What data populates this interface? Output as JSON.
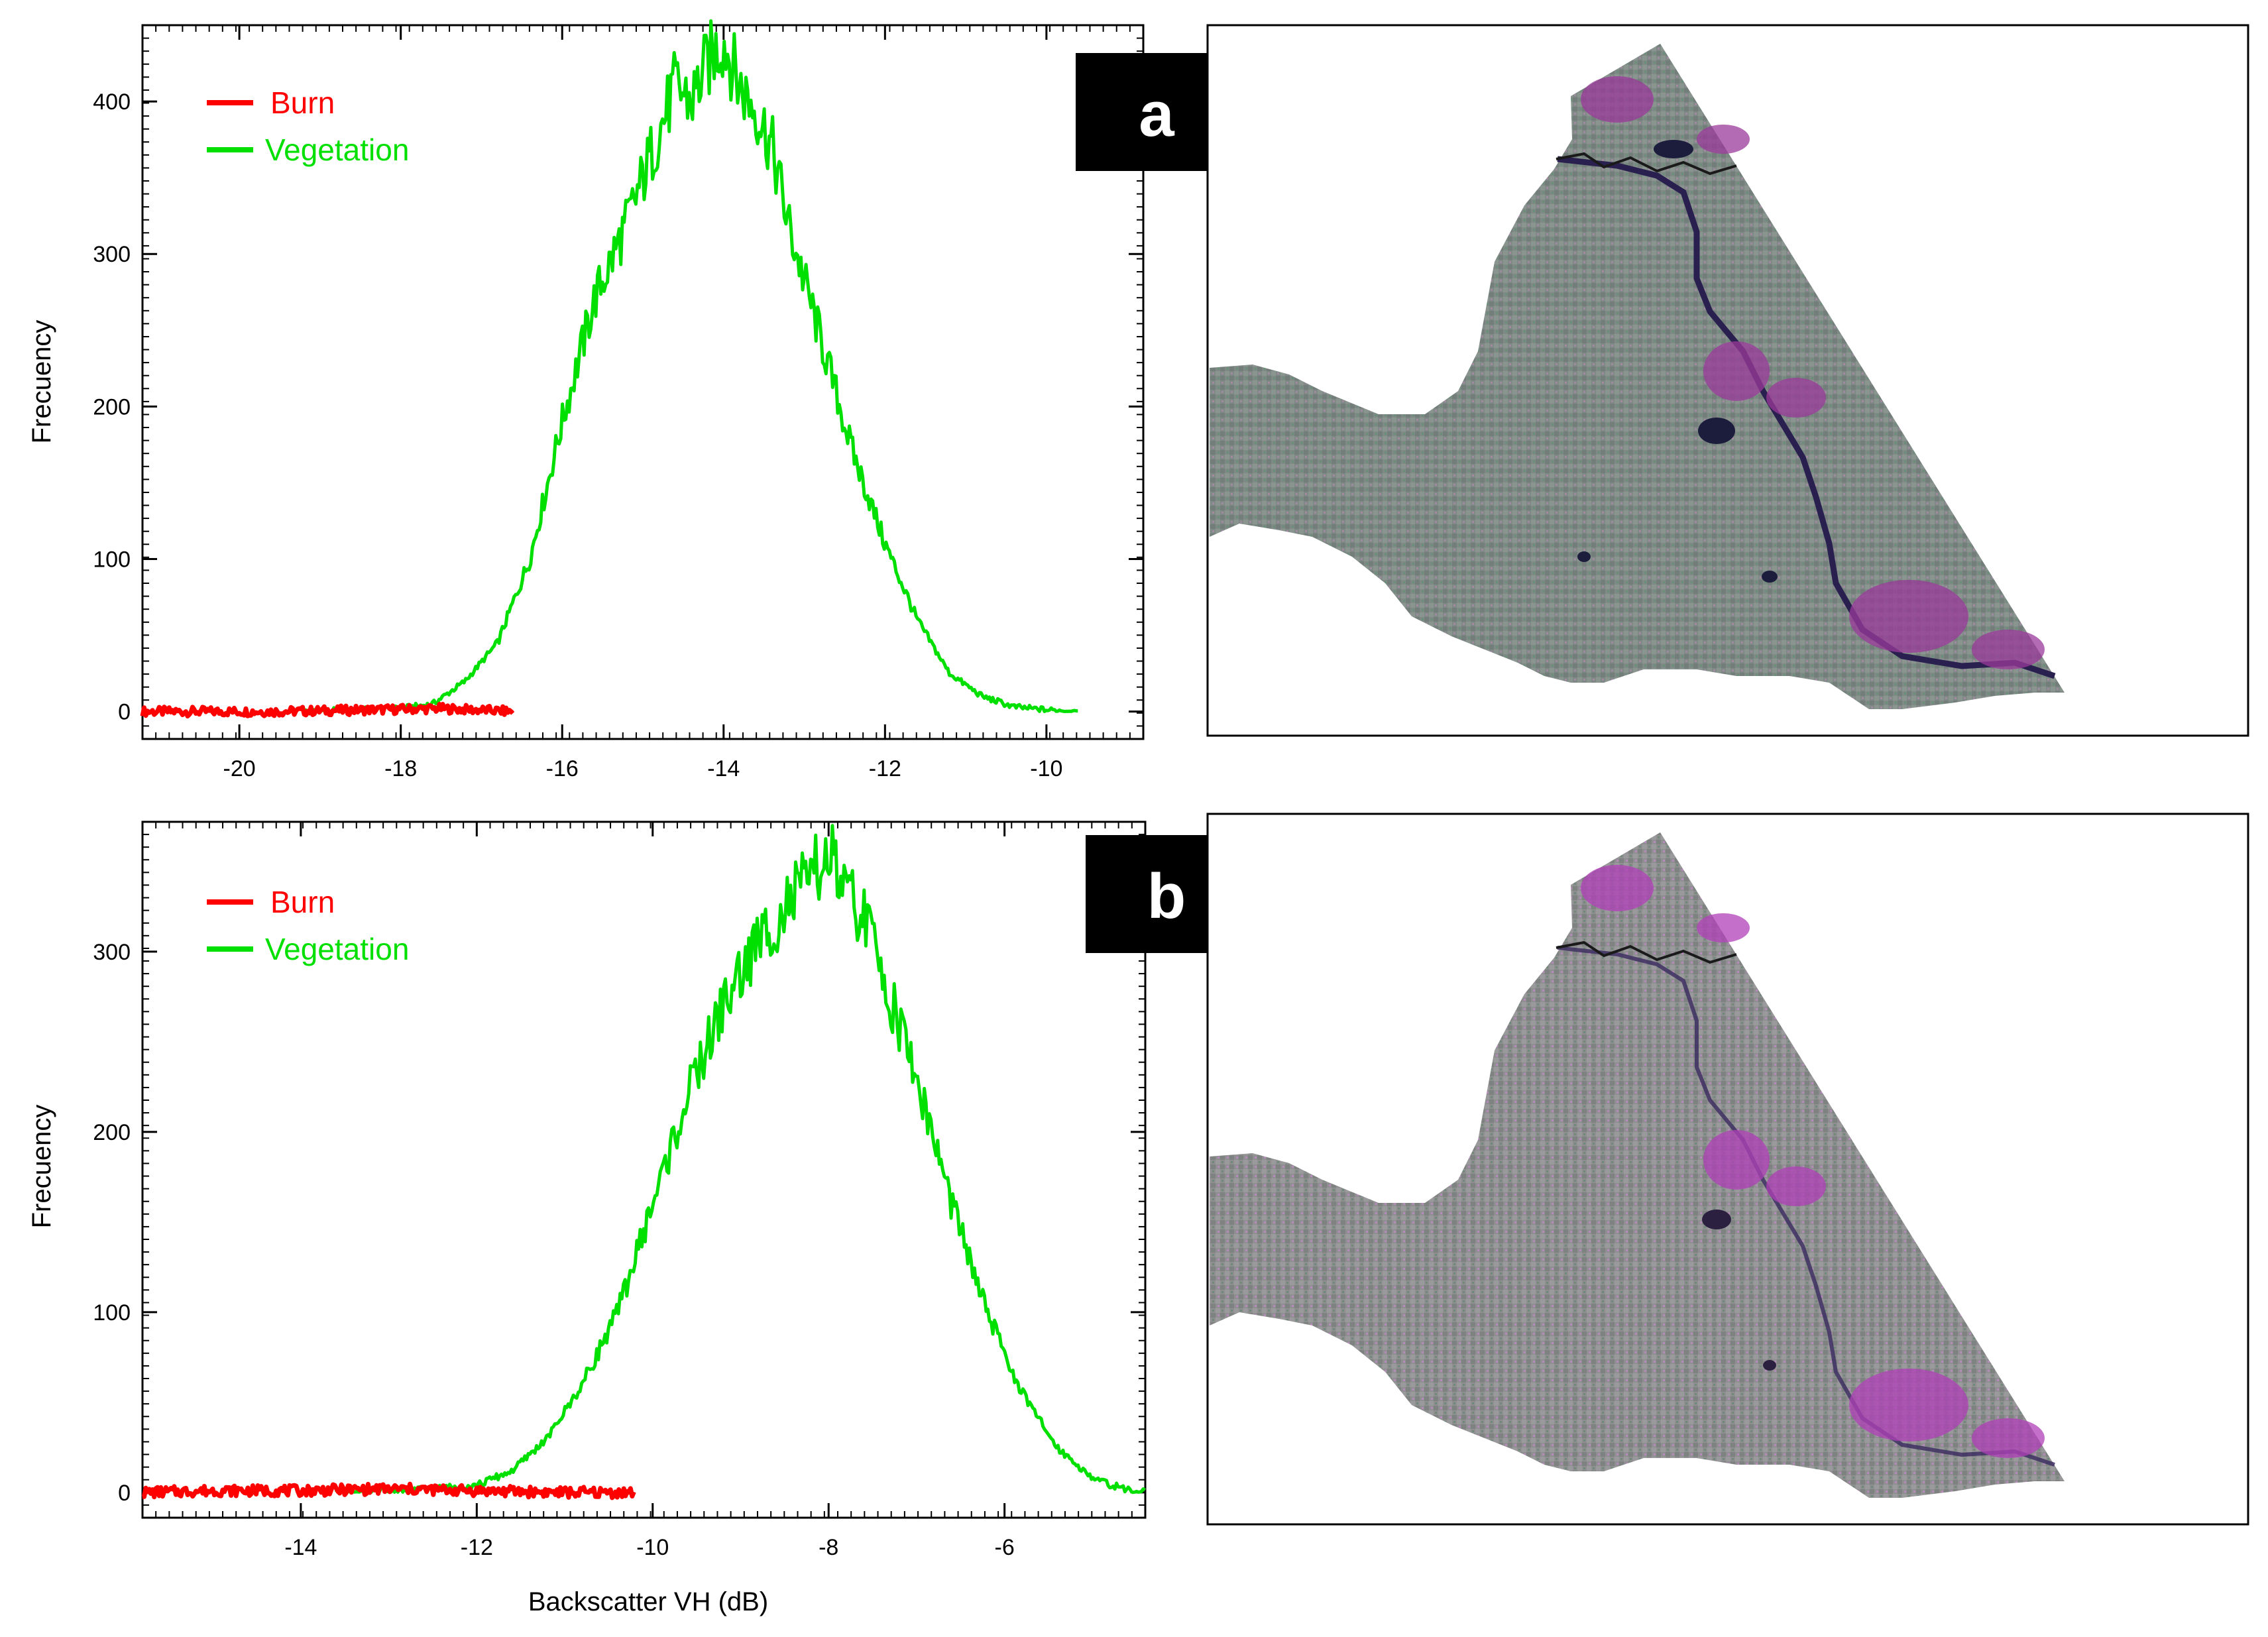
{
  "colors": {
    "burn": "#ff0000",
    "vegetation": "#00e000",
    "tag_bg": "#000000",
    "tag_fg": "#ffffff"
  },
  "chart_data": [
    {
      "type": "line",
      "panel": "a",
      "xlabel": "",
      "ylabel": "Frecuency",
      "xlim": [
        -21.2,
        -8.8
      ],
      "ylim": [
        -18,
        450
      ],
      "xticks": [
        -20,
        -18,
        -16,
        -14,
        -12,
        -10
      ],
      "yticks": [
        0,
        100,
        200,
        300,
        400
      ],
      "legend": {
        "position": "top-left"
      },
      "series": [
        {
          "name": "Burn",
          "color": "#ff0000",
          "x": [
            -21.2,
            -20.5,
            -19.5,
            -18.5,
            -17.5,
            -16.6
          ],
          "y": [
            0,
            0,
            0,
            1,
            2,
            0
          ]
        },
        {
          "name": "Vegetation",
          "color": "#00e000",
          "x": [
            -19.2,
            -18.5,
            -18.0,
            -17.6,
            -17.2,
            -16.8,
            -16.4,
            -16.0,
            -15.6,
            -15.2,
            -14.8,
            -14.6,
            -14.4,
            -14.2,
            -14.0,
            -13.8,
            -13.6,
            -13.4,
            -13.2,
            -12.8,
            -12.4,
            -12.0,
            -11.6,
            -11.2,
            -10.8,
            -10.4,
            -10.0,
            -9.6
          ],
          "y": [
            0,
            1,
            2,
            5,
            20,
            45,
            100,
            190,
            270,
            320,
            380,
            410,
            400,
            425,
            440,
            410,
            395,
            370,
            320,
            245,
            170,
            110,
            60,
            25,
            10,
            3,
            1,
            0
          ]
        }
      ]
    },
    {
      "type": "line",
      "panel": "b",
      "xlabel": "Backscatter VH (dB)",
      "ylabel": "Frecuency",
      "xlim": [
        -15.8,
        -4.4
      ],
      "ylim": [
        -14,
        372
      ],
      "xticks": [
        -14,
        -12,
        -10,
        -8,
        -6
      ],
      "yticks": [
        0,
        100,
        200,
        300
      ],
      "legend": {
        "position": "top-left"
      },
      "series": [
        {
          "name": "Burn",
          "color": "#ff0000",
          "x": [
            -15.8,
            -15.0,
            -14.0,
            -13.0,
            -12.0,
            -11.0,
            -10.2
          ],
          "y": [
            0,
            1,
            1,
            2,
            1,
            0,
            0
          ]
        },
        {
          "name": "Vegetation",
          "color": "#00e000",
          "x": [
            -13.6,
            -13.0,
            -12.5,
            -12.0,
            -11.6,
            -11.2,
            -10.8,
            -10.4,
            -10.0,
            -9.6,
            -9.2,
            -8.8,
            -8.4,
            -8.2,
            -8.0,
            -7.8,
            -7.6,
            -7.4,
            -7.0,
            -6.6,
            -6.2,
            -5.8,
            -5.4,
            -5.0,
            -4.6,
            -4.4
          ],
          "y": [
            0,
            1,
            2,
            4,
            12,
            30,
            60,
            100,
            160,
            220,
            270,
            305,
            330,
            340,
            355,
            330,
            320,
            290,
            230,
            160,
            100,
            55,
            25,
            8,
            1,
            0
          ]
        }
      ]
    }
  ],
  "panel_tags": [
    "a",
    "b"
  ]
}
